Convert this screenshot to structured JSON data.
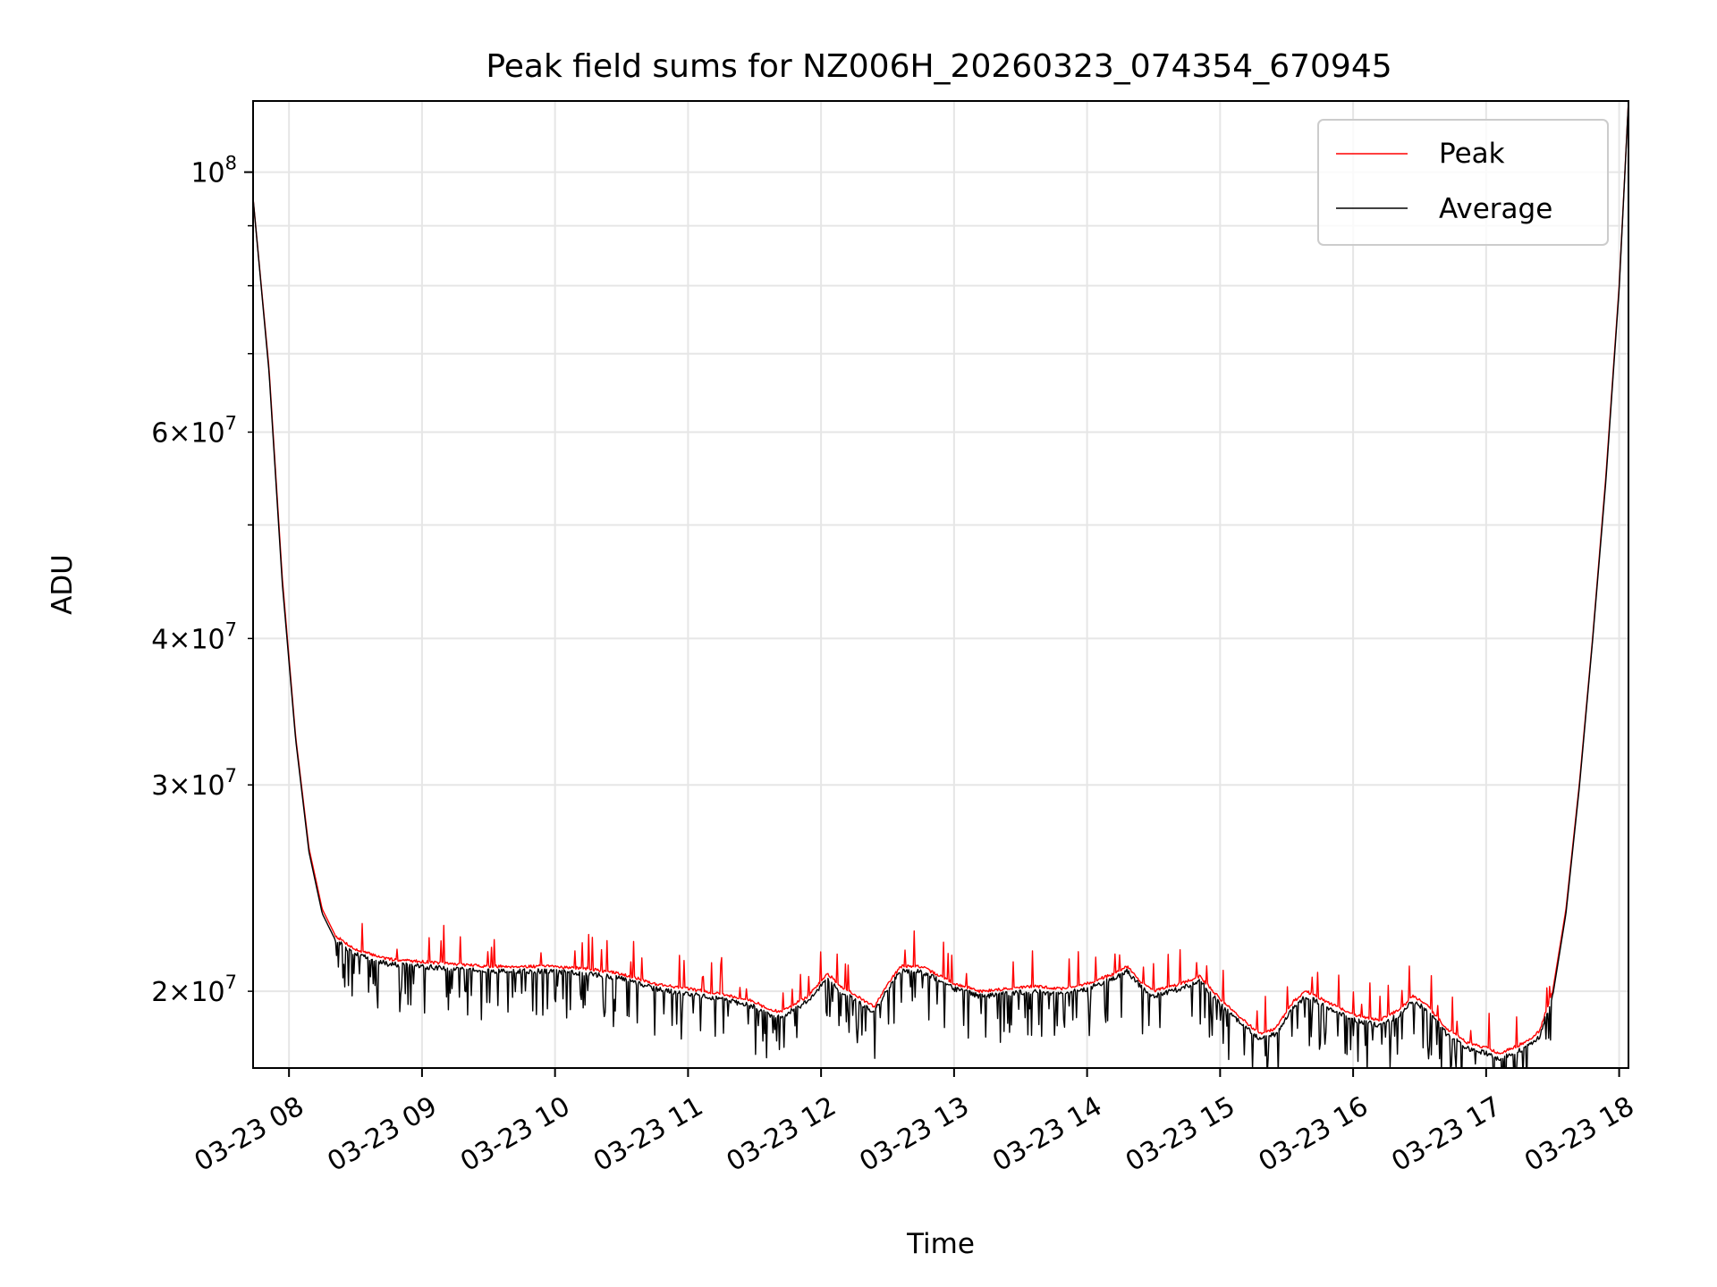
{
  "chart_data": {
    "type": "line",
    "title": "Peak field sums for NZ006H_20260323_074354_670945",
    "xlabel": "Time",
    "ylabel": "ADU",
    "yscale": "log",
    "xlim": [
      7.73,
      18.07
    ],
    "ylim": [
      17200000,
      115000000
    ],
    "grid": true,
    "legend_position": "top-right",
    "x_ticks": [
      {
        "value": 8,
        "label": "03-23 08"
      },
      {
        "value": 9,
        "label": "03-23 09"
      },
      {
        "value": 10,
        "label": "03-23 10"
      },
      {
        "value": 11,
        "label": "03-23 11"
      },
      {
        "value": 12,
        "label": "03-23 12"
      },
      {
        "value": 13,
        "label": "03-23 13"
      },
      {
        "value": 14,
        "label": "03-23 14"
      },
      {
        "value": 15,
        "label": "03-23 15"
      },
      {
        "value": 16,
        "label": "03-23 16"
      },
      {
        "value": 17,
        "label": "03-23 17"
      },
      {
        "value": 18,
        "label": "03-23 18"
      }
    ],
    "y_major_ticks": [
      {
        "value": 100000000,
        "mantissa": "",
        "exponent": "8"
      }
    ],
    "y_minor_ticks": [
      {
        "value": 20000000,
        "mantissa": "2",
        "exponent": "7"
      },
      {
        "value": 30000000,
        "mantissa": "3",
        "exponent": "7"
      },
      {
        "value": 40000000,
        "mantissa": "4",
        "exponent": "7"
      },
      {
        "value": 50000000,
        "mantissa": "",
        "exponent": ""
      },
      {
        "value": 60000000,
        "mantissa": "6",
        "exponent": "7"
      },
      {
        "value": 70000000,
        "mantissa": "",
        "exponent": ""
      },
      {
        "value": 80000000,
        "mantissa": "",
        "exponent": ""
      },
      {
        "value": 90000000,
        "mantissa": "",
        "exponent": ""
      }
    ],
    "series": [
      {
        "name": "Peak",
        "color": "#ff0000",
        "baseline": [
          [
            7.73,
            95000000
          ],
          [
            7.85,
            68000000
          ],
          [
            7.95,
            45000000
          ],
          [
            8.05,
            33000000
          ],
          [
            8.15,
            26500000
          ],
          [
            8.25,
            23500000
          ],
          [
            8.35,
            22300000
          ],
          [
            8.5,
            21700000
          ],
          [
            8.75,
            21300000
          ],
          [
            9.0,
            21200000
          ],
          [
            9.25,
            21100000
          ],
          [
            9.5,
            21000000
          ],
          [
            9.75,
            21000000
          ],
          [
            10.0,
            21000000
          ],
          [
            10.25,
            20900000
          ],
          [
            10.5,
            20700000
          ],
          [
            10.75,
            20300000
          ],
          [
            11.0,
            20100000
          ],
          [
            11.25,
            19900000
          ],
          [
            11.5,
            19600000
          ],
          [
            11.6,
            19300000
          ],
          [
            11.7,
            19200000
          ],
          [
            11.8,
            19500000
          ],
          [
            11.9,
            19800000
          ],
          [
            12.0,
            20400000
          ],
          [
            12.05,
            20700000
          ],
          [
            12.15,
            20200000
          ],
          [
            12.3,
            19700000
          ],
          [
            12.4,
            19400000
          ],
          [
            12.5,
            20300000
          ],
          [
            12.6,
            21000000
          ],
          [
            12.75,
            21000000
          ],
          [
            12.9,
            20600000
          ],
          [
            13.0,
            20300000
          ],
          [
            13.2,
            20000000
          ],
          [
            13.4,
            20100000
          ],
          [
            13.6,
            20200000
          ],
          [
            13.8,
            20100000
          ],
          [
            14.0,
            20300000
          ],
          [
            14.2,
            20700000
          ],
          [
            14.3,
            21000000
          ],
          [
            14.4,
            20400000
          ],
          [
            14.5,
            20000000
          ],
          [
            14.7,
            20300000
          ],
          [
            14.85,
            20600000
          ],
          [
            15.0,
            19700000
          ],
          [
            15.15,
            19000000
          ],
          [
            15.3,
            18400000
          ],
          [
            15.42,
            18600000
          ],
          [
            15.55,
            19600000
          ],
          [
            15.65,
            20000000
          ],
          [
            15.8,
            19600000
          ],
          [
            16.0,
            19100000
          ],
          [
            16.2,
            18900000
          ],
          [
            16.35,
            19300000
          ],
          [
            16.45,
            19800000
          ],
          [
            16.55,
            19500000
          ],
          [
            16.7,
            18600000
          ],
          [
            16.85,
            18100000
          ],
          [
            17.0,
            17900000
          ],
          [
            17.1,
            17700000
          ],
          [
            17.2,
            17900000
          ],
          [
            17.3,
            18100000
          ],
          [
            17.4,
            18500000
          ],
          [
            17.5,
            20000000
          ],
          [
            17.6,
            23500000
          ],
          [
            17.7,
            30000000
          ],
          [
            17.8,
            40000000
          ],
          [
            17.9,
            55000000
          ],
          [
            18.0,
            80000000
          ],
          [
            18.07,
            115000000
          ]
        ]
      },
      {
        "name": "Average",
        "color": "#000000",
        "baseline": [
          [
            7.73,
            95000000
          ],
          [
            7.85,
            67500000
          ],
          [
            7.95,
            44500000
          ],
          [
            8.05,
            32800000
          ],
          [
            8.15,
            26300000
          ],
          [
            8.25,
            23300000
          ],
          [
            8.35,
            22100000
          ],
          [
            8.5,
            21500000
          ],
          [
            8.75,
            21100000
          ],
          [
            9.0,
            21000000
          ],
          [
            9.25,
            20900000
          ],
          [
            9.5,
            20800000
          ],
          [
            9.75,
            20800000
          ],
          [
            10.0,
            20800000
          ],
          [
            10.25,
            20700000
          ],
          [
            10.5,
            20500000
          ],
          [
            10.75,
            20100000
          ],
          [
            11.0,
            19900000
          ],
          [
            11.25,
            19700000
          ],
          [
            11.5,
            19400000
          ],
          [
            11.6,
            19100000
          ],
          [
            11.7,
            19000000
          ],
          [
            11.8,
            19300000
          ],
          [
            11.9,
            19600000
          ],
          [
            12.0,
            20200000
          ],
          [
            12.05,
            20500000
          ],
          [
            12.15,
            20000000
          ],
          [
            12.3,
            19500000
          ],
          [
            12.4,
            19200000
          ],
          [
            12.5,
            20100000
          ],
          [
            12.6,
            20800000
          ],
          [
            12.75,
            20800000
          ],
          [
            12.9,
            20400000
          ],
          [
            13.0,
            20100000
          ],
          [
            13.2,
            19800000
          ],
          [
            13.4,
            19900000
          ],
          [
            13.6,
            20000000
          ],
          [
            13.8,
            19900000
          ],
          [
            14.0,
            20100000
          ],
          [
            14.2,
            20500000
          ],
          [
            14.3,
            20800000
          ],
          [
            14.4,
            20200000
          ],
          [
            14.5,
            19800000
          ],
          [
            14.7,
            20100000
          ],
          [
            14.85,
            20400000
          ],
          [
            15.0,
            19500000
          ],
          [
            15.15,
            18800000
          ],
          [
            15.3,
            18200000
          ],
          [
            15.42,
            18400000
          ],
          [
            15.55,
            19400000
          ],
          [
            15.65,
            19800000
          ],
          [
            15.8,
            19400000
          ],
          [
            16.0,
            18900000
          ],
          [
            16.2,
            18700000
          ],
          [
            16.35,
            19100000
          ],
          [
            16.45,
            19600000
          ],
          [
            16.55,
            19300000
          ],
          [
            16.7,
            18400000
          ],
          [
            16.85,
            17900000
          ],
          [
            17.0,
            17700000
          ],
          [
            17.1,
            17500000
          ],
          [
            17.2,
            17700000
          ],
          [
            17.3,
            17900000
          ],
          [
            17.4,
            18300000
          ],
          [
            17.5,
            19800000
          ],
          [
            17.6,
            23300000
          ],
          [
            17.7,
            29800000
          ],
          [
            17.8,
            39800000
          ],
          [
            17.9,
            54500000
          ],
          [
            18.0,
            79500000
          ],
          [
            18.07,
            115000000
          ]
        ]
      }
    ]
  }
}
